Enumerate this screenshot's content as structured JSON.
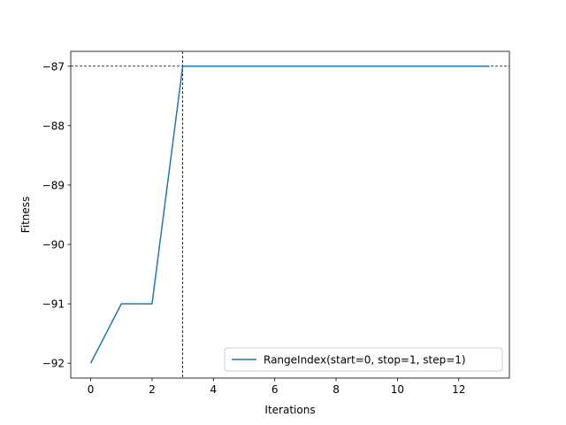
{
  "chart_data": {
    "type": "line",
    "xlabel": "Iterations",
    "ylabel": "Fitness",
    "xlim": [
      -0.65,
      13.65
    ],
    "ylim": [
      -92.25,
      -86.75
    ],
    "xticks": [
      0,
      2,
      4,
      6,
      8,
      10,
      12
    ],
    "xtick_labels": [
      "0",
      "2",
      "4",
      "6",
      "8",
      "10",
      "12"
    ],
    "yticks": [
      -92,
      -91,
      -90,
      -89,
      -88,
      -87
    ],
    "ytick_labels": [
      "−92",
      "−91",
      "−90",
      "−89",
      "−88",
      "−87"
    ],
    "grid": false,
    "legend_position": "lower right",
    "series": [
      {
        "name": "RangeIndex(start=0, stop=1, step=1)",
        "color": "#1f77b4",
        "x": [
          0,
          1,
          2,
          3,
          4,
          5,
          6,
          7,
          8,
          9,
          10,
          11,
          12,
          13
        ],
        "y": [
          -92,
          -91,
          -91,
          -87,
          -87,
          -87,
          -87,
          -87,
          -87,
          -87,
          -87,
          -87,
          -87,
          -87
        ]
      }
    ],
    "reference_lines": {
      "vertical_x": 3,
      "horizontal_y": -87,
      "style": "dashed",
      "color": "#000000"
    }
  }
}
